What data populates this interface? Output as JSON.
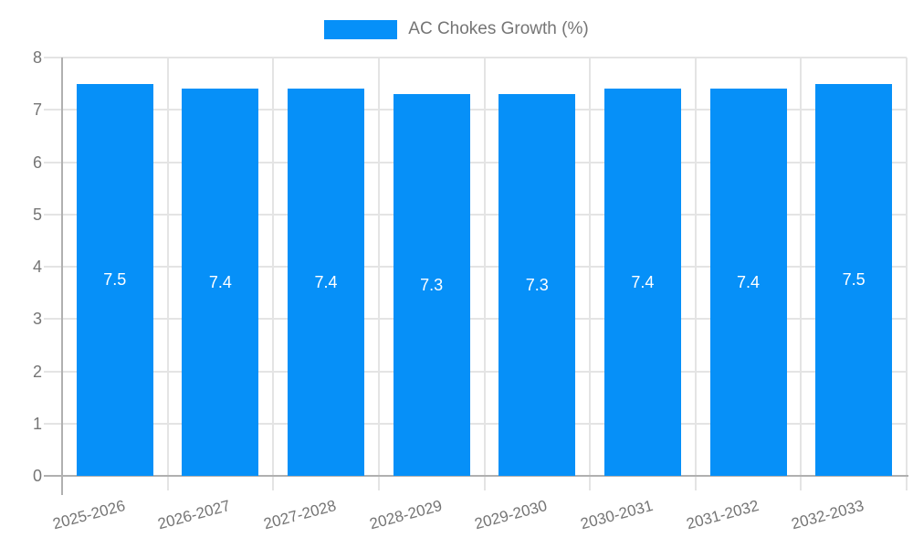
{
  "chart_data": {
    "type": "bar",
    "title": "AC Chokes Growth (%)",
    "legend_label": "AC Chokes Growth (%)",
    "legend_position": "top",
    "categories": [
      "2025-2026",
      "2026-2027",
      "2027-2028",
      "2028-2029",
      "2029-2030",
      "2030-2031",
      "2031-2032",
      "2032-2033"
    ],
    "values": [
      7.5,
      7.4,
      7.4,
      7.3,
      7.3,
      7.4,
      7.4,
      7.5
    ],
    "value_labels": [
      "7.5",
      "7.4",
      "7.4",
      "7.3",
      "7.3",
      "7.4",
      "7.4",
      "7.5"
    ],
    "xlabel": "",
    "ylabel": "",
    "ylim": [
      0,
      8
    ],
    "yticks": [
      0,
      1,
      2,
      3,
      4,
      5,
      6,
      7,
      8
    ],
    "grid": true,
    "colors": {
      "bar": "#0690f8",
      "value_label": "#ffffff",
      "axis_text": "#757575",
      "grid_line": "#e4e4e4",
      "axis_line": "#b0b0b0",
      "background": "#ffffff"
    }
  }
}
